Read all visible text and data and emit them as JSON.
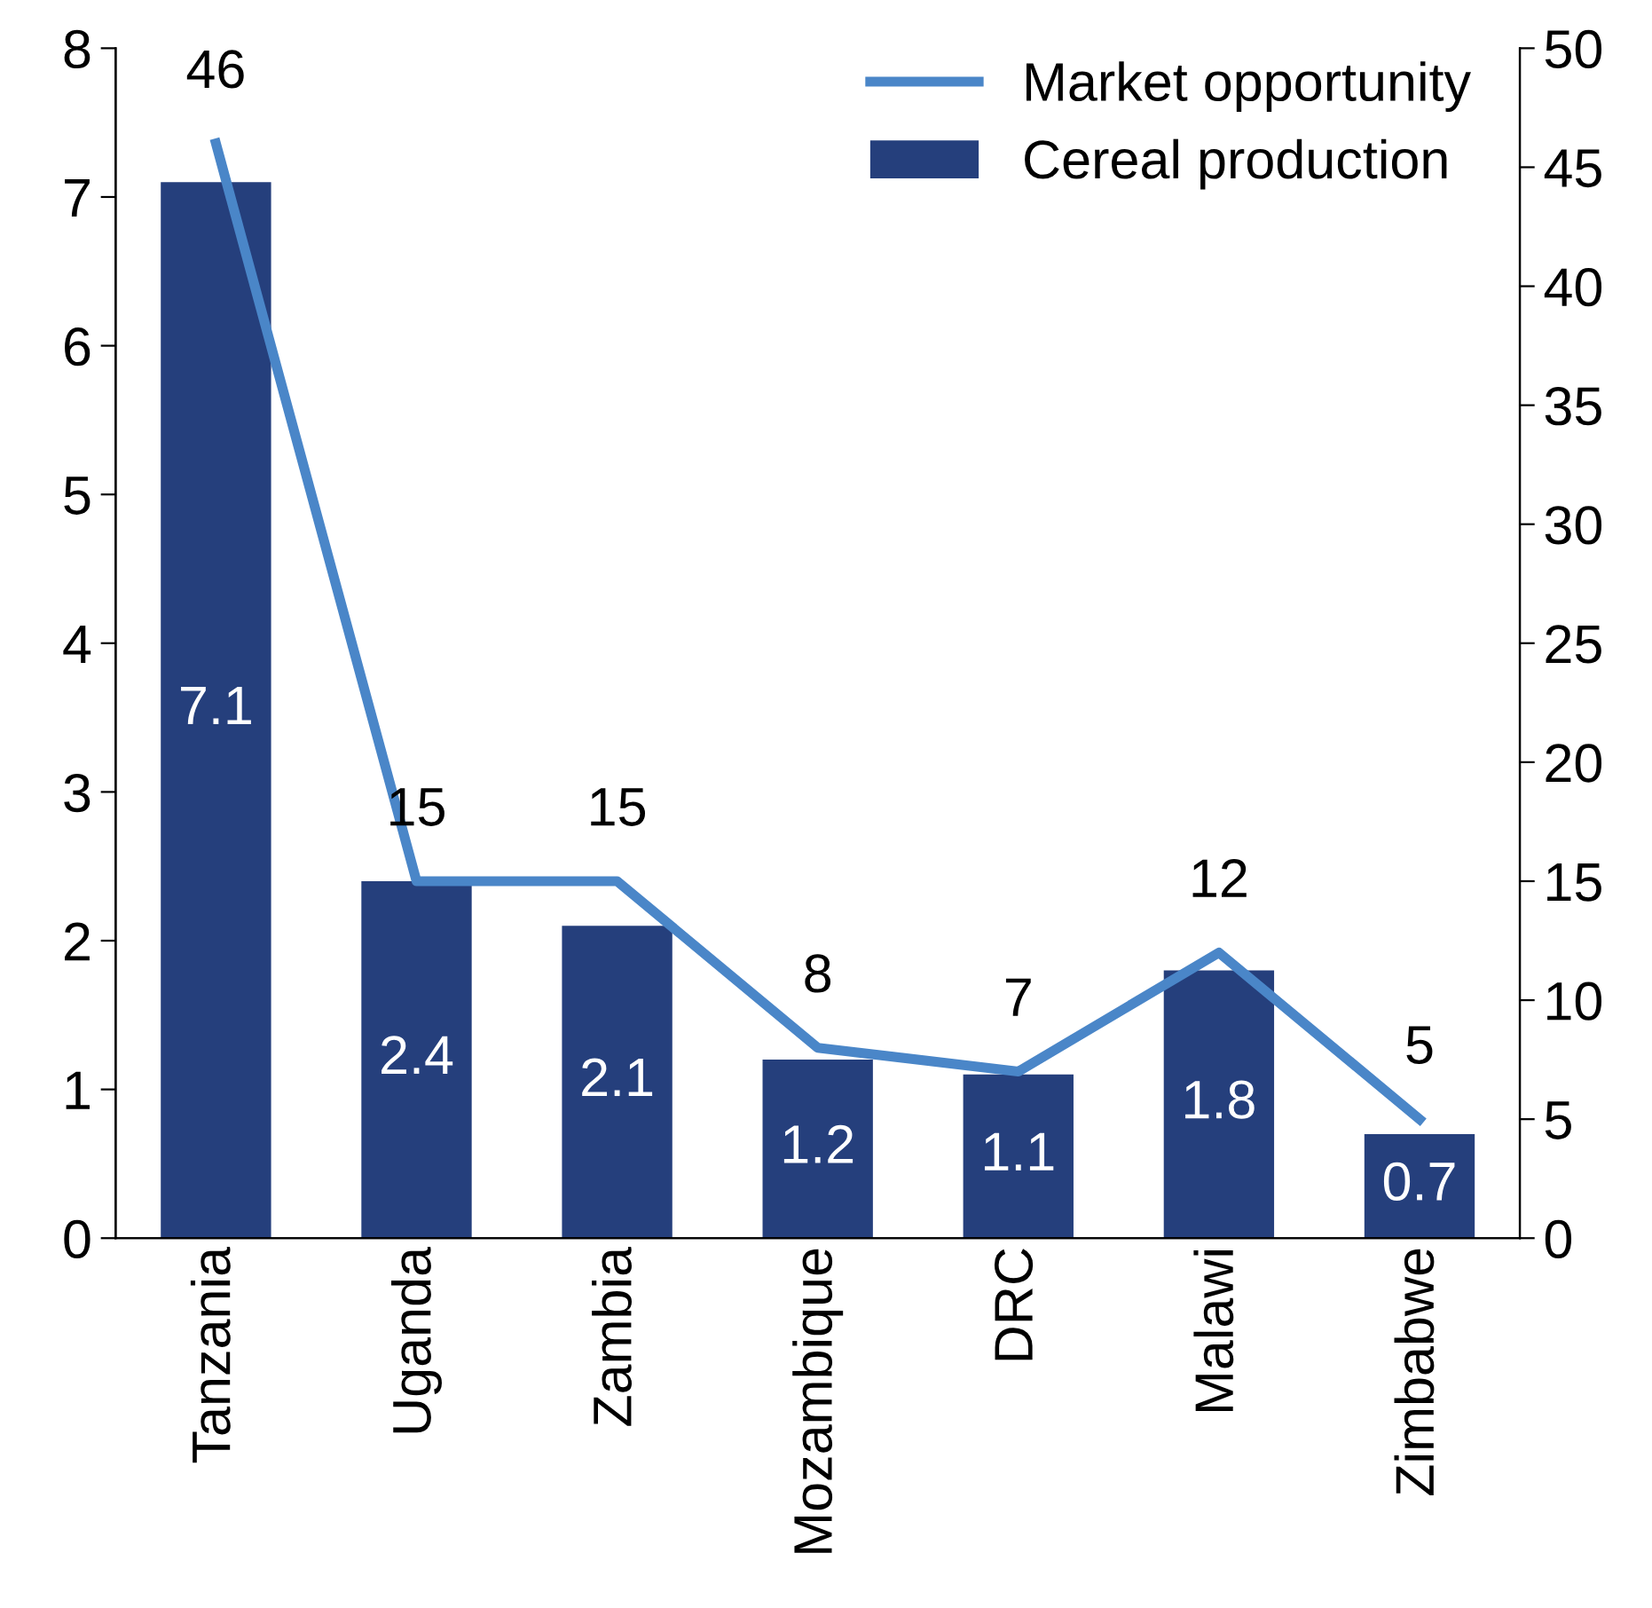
{
  "chart_data": {
    "type": "bar",
    "categories": [
      "Tanzania",
      "Uganda",
      "Zambia",
      "Mozambique",
      "DRC",
      "Malawi",
      "Zimbabwe"
    ],
    "series": [
      {
        "name": "Cereal production",
        "color": "#253f7c",
        "values": [
          7.1,
          2.4,
          2.1,
          1.2,
          1.1,
          1.8,
          0.7
        ]
      },
      {
        "name": "Market opportunity",
        "type": "line",
        "axis": "y2",
        "color": "#4a86c8",
        "values": [
          46,
          15,
          15,
          8,
          7,
          12,
          5
        ]
      }
    ],
    "ylim": [
      0,
      8
    ],
    "yticks": [
      0,
      1,
      2,
      3,
      4,
      5,
      6,
      7,
      8
    ],
    "y2lim": [
      0,
      50
    ],
    "y2ticks": [
      0,
      5,
      10,
      15,
      20,
      25,
      30,
      35,
      40,
      45,
      50
    ],
    "data_labels": true,
    "grid": false,
    "legend": "top right",
    "marker": "none",
    "line_style": "solid"
  }
}
